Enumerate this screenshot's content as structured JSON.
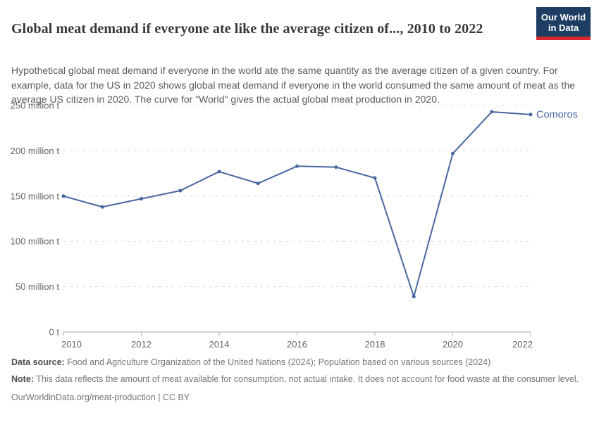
{
  "header": {
    "title": "Global meat demand if everyone ate like the average citizen of..., 2010 to 2022",
    "subtitle": "Hypothetical global meat demand if everyone in the world ate the same quantity as the average citizen of a given country. For example, data for the US in 2020 shows global meat demand if everyone in the world consumed the same amount of meat as the average US citizen in 2020. The curve for \"World\" gives the actual global meat production in 2020.",
    "logo": {
      "line1": "Our World",
      "line2": "in Data",
      "bg_color": "#1d3d63",
      "bar_color": "#d8292f"
    }
  },
  "chart_data": {
    "type": "line",
    "title": "Global meat demand if everyone ate like the average citizen of..., 2010 to 2022",
    "x": [
      2010,
      2011,
      2012,
      2013,
      2014,
      2015,
      2016,
      2017,
      2018,
      2019,
      2020,
      2021,
      2022
    ],
    "series": [
      {
        "name": "Comoros",
        "color": "#4866a0",
        "values": [
          150,
          138,
          147,
          156,
          177,
          164,
          183,
          182,
          170,
          39,
          197,
          243,
          240
        ]
      }
    ],
    "unit": "million t",
    "xlabel": "",
    "ylabel": "",
    "ylim": [
      0,
      250
    ],
    "xticks": [
      2010,
      2012,
      2014,
      2016,
      2018,
      2020,
      2022
    ],
    "yticks": [
      {
        "value": 0,
        "label": "0 t"
      },
      {
        "value": 50,
        "label": "50 million t"
      },
      {
        "value": 100,
        "label": "100 million t"
      },
      {
        "value": 150,
        "label": "150 million t"
      },
      {
        "value": 200,
        "label": "200 million t"
      },
      {
        "value": 250,
        "label": "250 million t"
      }
    ],
    "grid": "horizontal-dashed",
    "legend_position": "end-of-line-label",
    "end_label": "Comoros"
  },
  "footer": {
    "data_source_label": "Data source:",
    "data_source": "Food and Agriculture Organization of the United Nations (2024); Population based on various sources (2024)",
    "note_label": "Note:",
    "note": "This data reflects the amount of meat available for consumption, not actual intake. It does not account for food waste at the consumer level.",
    "credit": "OurWorldinData.org/meat-production | CC BY"
  },
  "colors": {
    "line": "#4866a0",
    "grid": "#dcdcdc",
    "axis": "#aaaaaa",
    "tick_text": "#666666",
    "title_text": "#373737",
    "subtitle_text": "#5b5b5b",
    "footer_text": "#757575"
  }
}
